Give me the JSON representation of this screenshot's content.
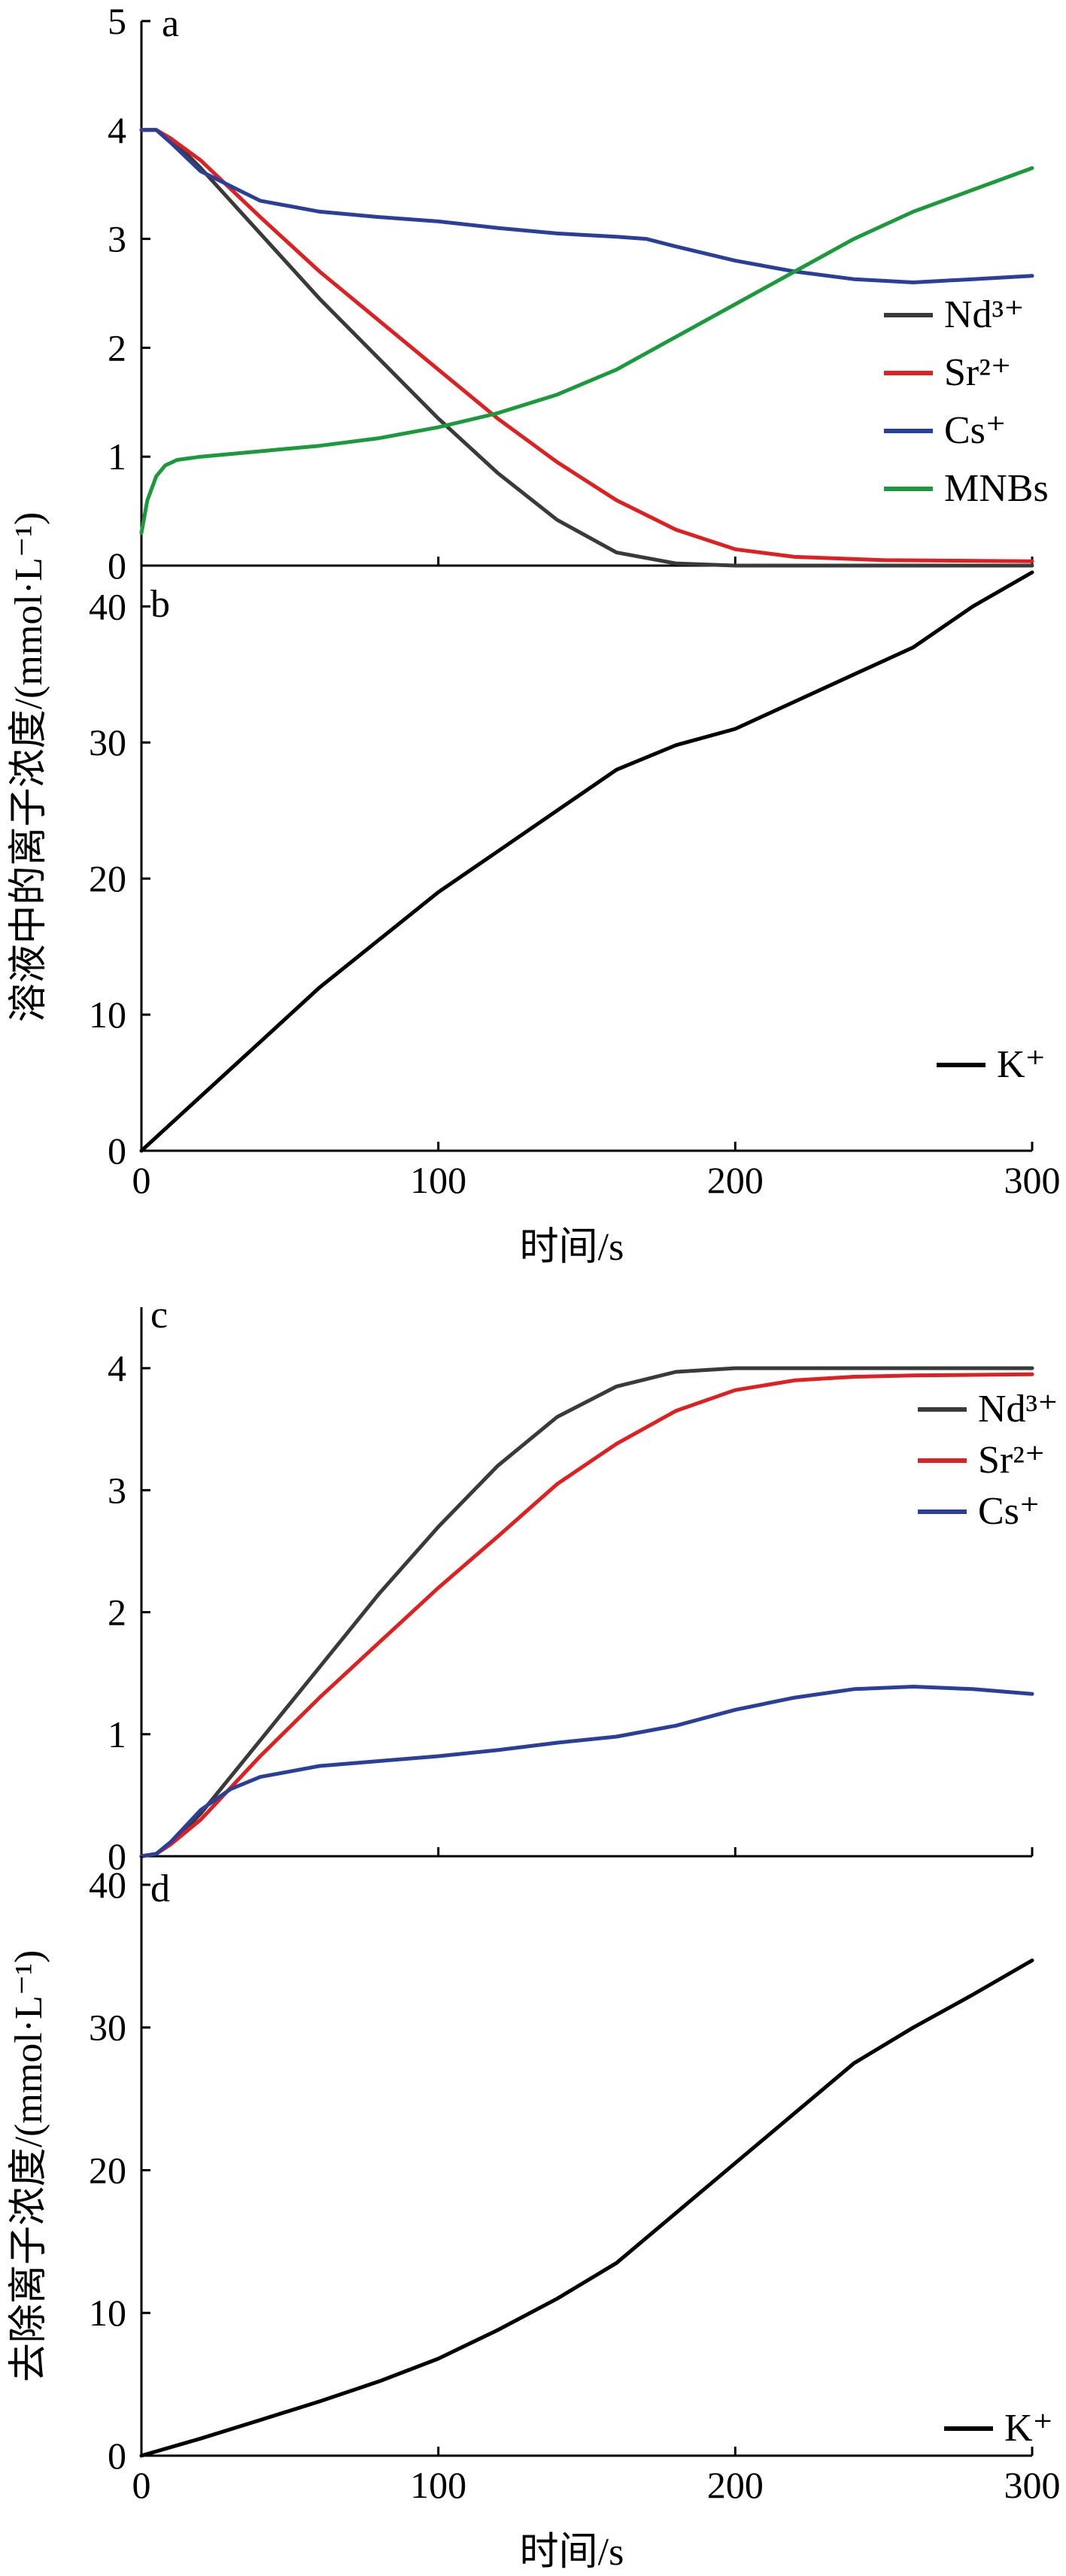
{
  "chart_data": [
    {
      "panel": "a",
      "type": "line",
      "xlim": [
        0,
        300
      ],
      "ylim": [
        0,
        5
      ],
      "yticks": [
        "0",
        "1",
        "2",
        "3",
        "4",
        "5"
      ],
      "legend_position": "right",
      "series": [
        {
          "name": "Nd³⁺",
          "color": "#3a3a3a",
          "x": [
            0,
            5,
            10,
            20,
            40,
            60,
            80,
            100,
            120,
            140,
            160,
            180,
            200,
            220,
            250,
            300
          ],
          "y": [
            4.0,
            4.0,
            3.92,
            3.65,
            3.05,
            2.45,
            1.9,
            1.35,
            0.85,
            0.42,
            0.12,
            0.02,
            0.0,
            0.0,
            0.0,
            0.0
          ]
        },
        {
          "name": "Sr²⁺",
          "color": "#e02020",
          "x": [
            0,
            5,
            10,
            20,
            40,
            60,
            80,
            100,
            120,
            140,
            160,
            180,
            200,
            220,
            250,
            300
          ],
          "y": [
            4.0,
            4.0,
            3.92,
            3.72,
            3.2,
            2.7,
            2.25,
            1.8,
            1.35,
            0.95,
            0.6,
            0.33,
            0.15,
            0.08,
            0.05,
            0.04
          ]
        },
        {
          "name": "Cs⁺",
          "color": "#2a3f9a",
          "x": [
            0,
            5,
            10,
            20,
            40,
            60,
            80,
            100,
            120,
            140,
            160,
            170,
            180,
            200,
            220,
            240,
            260,
            280,
            300
          ],
          "y": [
            4.0,
            4.0,
            3.88,
            3.62,
            3.35,
            3.25,
            3.2,
            3.16,
            3.1,
            3.05,
            3.02,
            3.0,
            2.93,
            2.8,
            2.7,
            2.63,
            2.6,
            2.63,
            2.66
          ]
        },
        {
          "name": "MNBs",
          "color": "#1a9a3a",
          "x": [
            0,
            2,
            5,
            8,
            12,
            20,
            40,
            60,
            80,
            100,
            120,
            140,
            160,
            180,
            200,
            220,
            240,
            260,
            280,
            300
          ],
          "y": [
            0.3,
            0.6,
            0.82,
            0.92,
            0.97,
            1.0,
            1.05,
            1.1,
            1.17,
            1.27,
            1.4,
            1.57,
            1.8,
            2.1,
            2.4,
            2.7,
            3.0,
            3.25,
            3.45,
            3.65
          ]
        }
      ]
    },
    {
      "panel": "b",
      "type": "line",
      "xlim": [
        0,
        300
      ],
      "ylim": [
        0,
        43
      ],
      "yticks": [
        "0",
        "10",
        "20",
        "30",
        "40"
      ],
      "xticks": [
        "0",
        "100",
        "200",
        "300"
      ],
      "xlabel": "时间/s",
      "legend_position": "bottom-right",
      "series": [
        {
          "name": "K⁺",
          "color": "#000000",
          "x": [
            0,
            20,
            40,
            60,
            80,
            100,
            120,
            140,
            160,
            180,
            200,
            220,
            240,
            260,
            280,
            300
          ],
          "y": [
            0,
            4,
            8,
            12,
            15.5,
            19,
            22,
            25,
            28,
            29.8,
            31,
            33,
            35,
            37,
            40,
            42.5
          ]
        }
      ]
    },
    {
      "panel": "c",
      "type": "line",
      "xlim": [
        0,
        300
      ],
      "ylim": [
        0,
        4.5
      ],
      "yticks": [
        "0",
        "1",
        "2",
        "3",
        "4"
      ],
      "legend_position": "top-right",
      "series": [
        {
          "name": "Nd³⁺",
          "color": "#3a3a3a",
          "x": [
            0,
            5,
            10,
            20,
            40,
            60,
            80,
            100,
            120,
            140,
            160,
            180,
            200,
            250,
            300
          ],
          "y": [
            0,
            0.02,
            0.1,
            0.35,
            0.95,
            1.55,
            2.15,
            2.7,
            3.2,
            3.6,
            3.85,
            3.97,
            4.0,
            4.0,
            4.0
          ]
        },
        {
          "name": "Sr²⁺",
          "color": "#e02020",
          "x": [
            0,
            5,
            10,
            20,
            40,
            60,
            80,
            100,
            120,
            140,
            160,
            180,
            200,
            220,
            240,
            260,
            300
          ],
          "y": [
            0,
            0.02,
            0.1,
            0.3,
            0.82,
            1.3,
            1.75,
            2.2,
            2.62,
            3.05,
            3.38,
            3.65,
            3.82,
            3.9,
            3.93,
            3.94,
            3.95
          ]
        },
        {
          "name": "Cs⁺",
          "color": "#2a3f9a",
          "x": [
            0,
            5,
            10,
            20,
            30,
            40,
            60,
            80,
            100,
            120,
            140,
            160,
            180,
            200,
            220,
            240,
            260,
            280,
            300
          ],
          "y": [
            0,
            0.02,
            0.12,
            0.38,
            0.55,
            0.65,
            0.74,
            0.78,
            0.82,
            0.87,
            0.93,
            0.98,
            1.07,
            1.2,
            1.3,
            1.37,
            1.39,
            1.37,
            1.33
          ]
        }
      ]
    },
    {
      "panel": "d",
      "type": "line",
      "xlim": [
        0,
        300
      ],
      "ylim": [
        0,
        42
      ],
      "yticks": [
        "0",
        "10",
        "20",
        "30",
        "40"
      ],
      "xticks": [
        "0",
        "100",
        "200",
        "300"
      ],
      "xlabel": "时间/s",
      "legend_position": "bottom-right",
      "series": [
        {
          "name": "K⁺",
          "color": "#000000",
          "x": [
            0,
            20,
            40,
            60,
            80,
            100,
            120,
            140,
            160,
            180,
            200,
            220,
            240,
            260,
            280,
            300
          ],
          "y": [
            0,
            1.2,
            2.5,
            3.8,
            5.2,
            6.8,
            8.8,
            11,
            13.5,
            17,
            20.5,
            24,
            27.5,
            30,
            32.3,
            34.7
          ]
        }
      ]
    }
  ],
  "labels": {
    "panel_a": "a",
    "panel_b": "b",
    "panel_c": "c",
    "panel_d": "d",
    "ylabel_top": "溶液中的离子浓度/(mmol·L⁻¹)",
    "ylabel_bottom": "去除离子浓度/(mmol·L⁻¹)"
  }
}
